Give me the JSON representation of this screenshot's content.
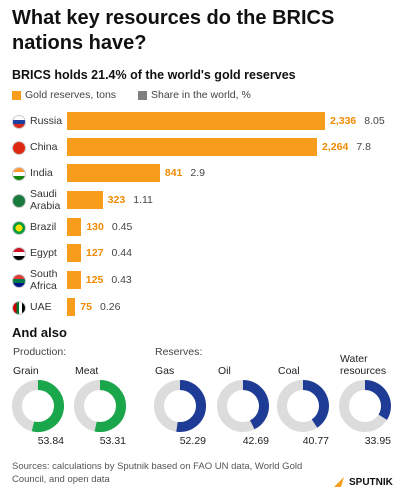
{
  "title": "What key resources do the BRICS nations have?",
  "chart_data": [
    {
      "type": "bar",
      "title": "BRICS holds 21.4% of the world's gold reserves",
      "categories": [
        "Russia",
        "China",
        "India",
        "Saudi Arabia",
        "Brazil",
        "Egypt",
        "South Africa",
        "UAE"
      ],
      "series": [
        {
          "name": "Gold reserves, tons",
          "color": "#f89c1c",
          "values": [
            2336,
            2264,
            841,
            323,
            130,
            127,
            125,
            75
          ],
          "value_labels": [
            "2,336",
            "2,264",
            "841",
            "323",
            "130",
            "127",
            "125",
            "75"
          ]
        },
        {
          "name": "Share in the world, %",
          "color": "#808080",
          "values": [
            8.05,
            7.8,
            2.9,
            1.11,
            0.45,
            0.44,
            0.43,
            0.26
          ]
        }
      ]
    },
    {
      "type": "donut",
      "title": "And also",
      "groups": [
        {
          "name": "Production:",
          "color": "#1aa64a",
          "categories": [
            "Grain",
            "Meat"
          ],
          "values": [
            53.84,
            53.31
          ]
        },
        {
          "name": "Reserves:",
          "color": "#1e3c96",
          "categories": [
            "Gas",
            "Oil",
            "Coal",
            "Water resources"
          ],
          "values": [
            52.29,
            42.69,
            40.77,
            33.95
          ]
        }
      ]
    }
  ],
  "source": "Sources: calculations by Sputnik based on FAO UN data, World Gold Council, and open data",
  "logo": "SPUTNIK"
}
